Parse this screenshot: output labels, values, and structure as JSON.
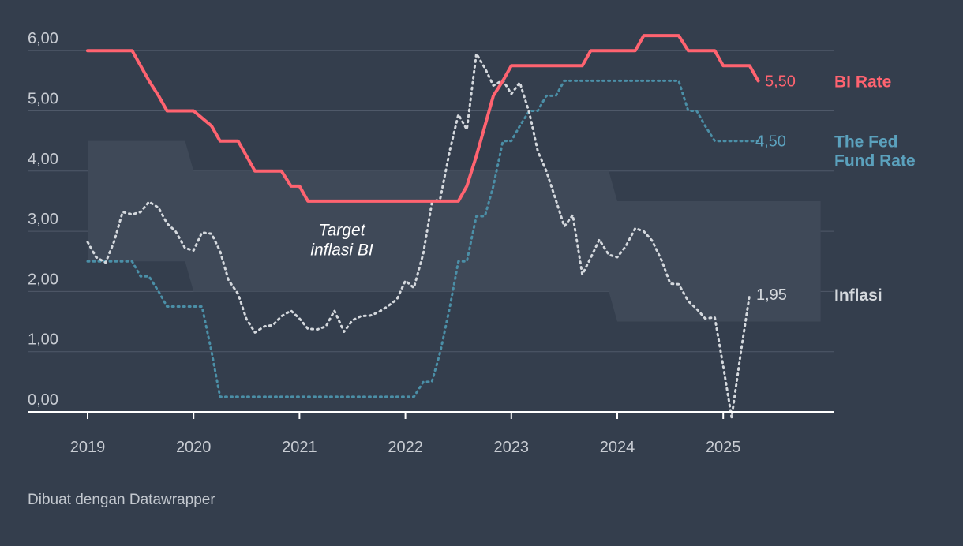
{
  "colors": {
    "background": "#343e4d",
    "bi_rate": "#ff6370",
    "fed_rate": "#4b8fa7",
    "fed_label": "#5ba1bd",
    "inflation": "#d4d8dd",
    "target_band": "#3f4958",
    "grid": "#4f5969",
    "axis": "#ffffff"
  },
  "credit": "Dibuat dengan Datawrapper",
  "chart_data": {
    "type": "line",
    "title": "",
    "xlabel": "",
    "ylabel": "",
    "xlim": [
      2018.45,
      2026.1
    ],
    "ylim": [
      0,
      6
    ],
    "y_ticks": [
      0,
      1,
      2,
      3,
      4,
      5,
      6
    ],
    "y_tick_labels": [
      "0,00",
      "1,00",
      "2,00",
      "3,00",
      "4,00",
      "5,00",
      "6,00"
    ],
    "x_ticks": [
      2019,
      2020,
      2021,
      2022,
      2023,
      2024,
      2025
    ],
    "x_tick_labels": [
      "2019",
      "2020",
      "2021",
      "2022",
      "2023",
      "2024",
      "2025"
    ],
    "target_band": {
      "label_line1": "Target",
      "label_line2": "inflasi BI",
      "segments": [
        {
          "x_start": 2019.0,
          "x_end": 2019.92,
          "low": 2.5,
          "high": 4.5
        },
        {
          "x_start": 2020.0,
          "x_end": 2023.92,
          "low": 2.0,
          "high": 4.0
        },
        {
          "x_start": 2024.0,
          "x_end": 2025.92,
          "low": 1.5,
          "high": 3.5
        }
      ]
    },
    "series": [
      {
        "name": "BI Rate",
        "style": "solid",
        "end_label": "5,50",
        "points": [
          [
            2019.0,
            6.0
          ],
          [
            2019.42,
            6.0
          ],
          [
            2019.5,
            5.75
          ],
          [
            2019.58,
            5.5
          ],
          [
            2019.67,
            5.25
          ],
          [
            2019.75,
            5.0
          ],
          [
            2020.0,
            5.0
          ],
          [
            2020.17,
            4.75
          ],
          [
            2020.25,
            4.5
          ],
          [
            2020.42,
            4.5
          ],
          [
            2020.5,
            4.25
          ],
          [
            2020.58,
            4.0
          ],
          [
            2020.83,
            4.0
          ],
          [
            2020.92,
            3.75
          ],
          [
            2021.0,
            3.75
          ],
          [
            2021.08,
            3.5
          ],
          [
            2022.5,
            3.5
          ],
          [
            2022.58,
            3.75
          ],
          [
            2022.67,
            4.25
          ],
          [
            2022.75,
            4.75
          ],
          [
            2022.83,
            5.25
          ],
          [
            2022.92,
            5.5
          ],
          [
            2023.0,
            5.75
          ],
          [
            2023.67,
            5.75
          ],
          [
            2023.75,
            6.0
          ],
          [
            2024.17,
            6.0
          ],
          [
            2024.25,
            6.25
          ],
          [
            2024.58,
            6.25
          ],
          [
            2024.67,
            6.0
          ],
          [
            2024.92,
            6.0
          ],
          [
            2025.0,
            5.75
          ],
          [
            2025.25,
            5.75
          ],
          [
            2025.33,
            5.5
          ]
        ]
      },
      {
        "name": "The Fed Fund Rate",
        "style": "dotted",
        "end_label": "4,50",
        "points": [
          [
            2019.0,
            2.5
          ],
          [
            2019.42,
            2.5
          ],
          [
            2019.5,
            2.25
          ],
          [
            2019.58,
            2.25
          ],
          [
            2019.67,
            2.0
          ],
          [
            2019.75,
            1.75
          ],
          [
            2020.08,
            1.75
          ],
          [
            2020.17,
            1.0
          ],
          [
            2020.25,
            0.25
          ],
          [
            2022.08,
            0.25
          ],
          [
            2022.17,
            0.5
          ],
          [
            2022.25,
            0.5
          ],
          [
            2022.33,
            1.0
          ],
          [
            2022.42,
            1.75
          ],
          [
            2022.5,
            2.5
          ],
          [
            2022.58,
            2.5
          ],
          [
            2022.67,
            3.25
          ],
          [
            2022.75,
            3.25
          ],
          [
            2022.83,
            3.75
          ],
          [
            2022.92,
            4.5
          ],
          [
            2023.0,
            4.5
          ],
          [
            2023.08,
            4.75
          ],
          [
            2023.17,
            5.0
          ],
          [
            2023.25,
            5.0
          ],
          [
            2023.33,
            5.25
          ],
          [
            2023.42,
            5.25
          ],
          [
            2023.5,
            5.5
          ],
          [
            2024.58,
            5.5
          ],
          [
            2024.67,
            5.0
          ],
          [
            2024.75,
            5.0
          ],
          [
            2024.83,
            4.75
          ],
          [
            2024.92,
            4.5
          ],
          [
            2025.33,
            4.5
          ]
        ]
      },
      {
        "name": "Inflasi",
        "style": "dotted",
        "end_label": "1,95",
        "points": [
          [
            2019.0,
            2.82
          ],
          [
            2019.08,
            2.57
          ],
          [
            2019.17,
            2.48
          ],
          [
            2019.25,
            2.83
          ],
          [
            2019.33,
            3.32
          ],
          [
            2019.42,
            3.28
          ],
          [
            2019.5,
            3.32
          ],
          [
            2019.58,
            3.49
          ],
          [
            2019.67,
            3.39
          ],
          [
            2019.75,
            3.13
          ],
          [
            2019.83,
            3.0
          ],
          [
            2019.92,
            2.72
          ],
          [
            2020.0,
            2.68
          ],
          [
            2020.08,
            2.98
          ],
          [
            2020.17,
            2.96
          ],
          [
            2020.25,
            2.67
          ],
          [
            2020.33,
            2.19
          ],
          [
            2020.42,
            1.96
          ],
          [
            2020.5,
            1.54
          ],
          [
            2020.58,
            1.32
          ],
          [
            2020.67,
            1.42
          ],
          [
            2020.75,
            1.44
          ],
          [
            2020.83,
            1.59
          ],
          [
            2020.92,
            1.68
          ],
          [
            2021.0,
            1.55
          ],
          [
            2021.08,
            1.38
          ],
          [
            2021.17,
            1.37
          ],
          [
            2021.25,
            1.42
          ],
          [
            2021.33,
            1.68
          ],
          [
            2021.42,
            1.33
          ],
          [
            2021.5,
            1.52
          ],
          [
            2021.58,
            1.59
          ],
          [
            2021.67,
            1.6
          ],
          [
            2021.75,
            1.66
          ],
          [
            2021.83,
            1.75
          ],
          [
            2021.92,
            1.87
          ],
          [
            2022.0,
            2.18
          ],
          [
            2022.08,
            2.06
          ],
          [
            2022.17,
            2.64
          ],
          [
            2022.25,
            3.47
          ],
          [
            2022.33,
            3.55
          ],
          [
            2022.42,
            4.35
          ],
          [
            2022.5,
            4.94
          ],
          [
            2022.58,
            4.69
          ],
          [
            2022.67,
            5.95
          ],
          [
            2022.75,
            5.71
          ],
          [
            2022.83,
            5.42
          ],
          [
            2022.92,
            5.51
          ],
          [
            2023.0,
            5.28
          ],
          [
            2023.08,
            5.47
          ],
          [
            2023.17,
            4.97
          ],
          [
            2023.25,
            4.33
          ],
          [
            2023.33,
            4.0
          ],
          [
            2023.42,
            3.52
          ],
          [
            2023.5,
            3.08
          ],
          [
            2023.58,
            3.27
          ],
          [
            2023.67,
            2.28
          ],
          [
            2023.75,
            2.56
          ],
          [
            2023.83,
            2.86
          ],
          [
            2023.92,
            2.61
          ],
          [
            2024.0,
            2.57
          ],
          [
            2024.08,
            2.75
          ],
          [
            2024.17,
            3.05
          ],
          [
            2024.25,
            3.0
          ],
          [
            2024.33,
            2.84
          ],
          [
            2024.42,
            2.51
          ],
          [
            2024.5,
            2.13
          ],
          [
            2024.58,
            2.12
          ],
          [
            2024.67,
            1.84
          ],
          [
            2024.75,
            1.71
          ],
          [
            2024.83,
            1.55
          ],
          [
            2024.92,
            1.57
          ],
          [
            2025.0,
            0.76
          ],
          [
            2025.08,
            -0.09
          ],
          [
            2025.17,
            1.03
          ],
          [
            2025.25,
            1.95
          ]
        ]
      }
    ],
    "legend": {
      "bi_rate": "BI Rate",
      "fed_line1": "The Fed",
      "fed_line2": "Fund Rate",
      "inflation": "Inflasi"
    }
  }
}
